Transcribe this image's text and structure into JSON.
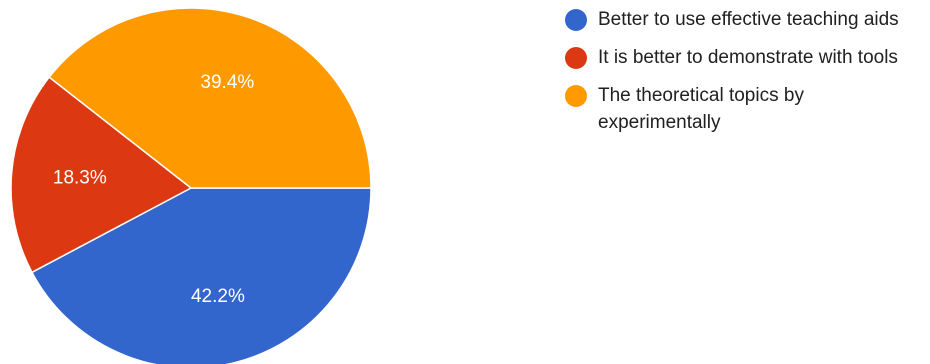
{
  "chart_data": {
    "type": "pie",
    "title": "",
    "slices": [
      {
        "label": "Better to use effective teaching aids",
        "value": 42.2,
        "display": "42.2%",
        "color": "#3366cc"
      },
      {
        "label": "It is better to demonstrate with tools",
        "value": 18.3,
        "display": "18.3%",
        "color": "#dc3912"
      },
      {
        "label": "The theoretical topics by experimentally",
        "value": 39.4,
        "display": "39.4%",
        "color": "#ff9900"
      }
    ],
    "start_angle": "3 o'clock",
    "direction": "clockwise",
    "legend": {
      "placement": "right"
    }
  }
}
